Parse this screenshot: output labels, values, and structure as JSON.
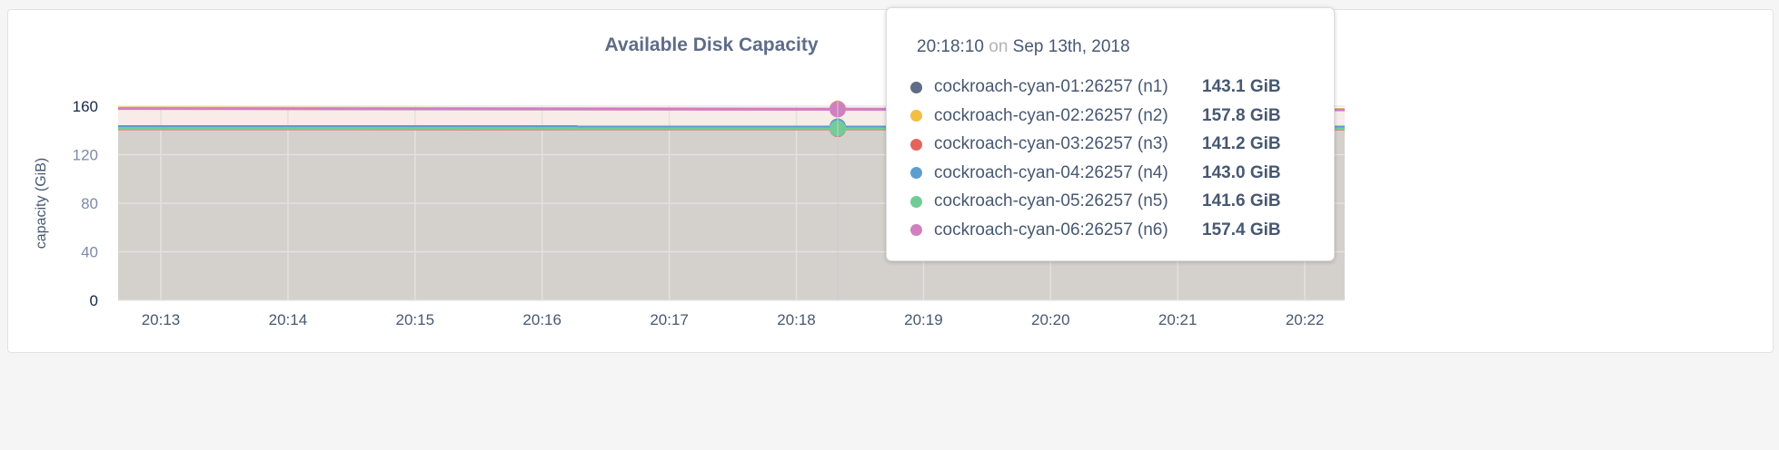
{
  "chart_data": {
    "type": "area",
    "title": "Available Disk Capacity",
    "ylabel": "capacity (GiB)",
    "xlabel": "",
    "ylim": [
      0,
      160
    ],
    "yticks": [
      "0",
      "40",
      "80",
      "120",
      "160"
    ],
    "xticks": [
      "20:13",
      "20:14",
      "20:15",
      "20:16",
      "20:17",
      "20:18",
      "20:19",
      "20:20",
      "20:21",
      "20:22"
    ],
    "grid": true,
    "series": [
      {
        "name": "cockroach-cyan-01:26257 (n1)",
        "color": "#5f6c87",
        "start": 143.2,
        "end": 143.0,
        "hover": "143.1 GiB"
      },
      {
        "name": "cockroach-cyan-02:26257 (n2)",
        "color": "#f2be45",
        "start": 158.5,
        "end": 157.3,
        "hover": "157.8 GiB"
      },
      {
        "name": "cockroach-cyan-03:26257 (n3)",
        "color": "#e4645c",
        "start": 141.3,
        "end": 141.1,
        "hover": "141.2 GiB"
      },
      {
        "name": "cockroach-cyan-04:26257 (n4)",
        "color": "#5e9dd0",
        "start": 143.1,
        "end": 142.9,
        "hover": "143.0 GiB"
      },
      {
        "name": "cockroach-cyan-05:26257 (n5)",
        "color": "#72cc97",
        "start": 141.7,
        "end": 141.5,
        "hover": "141.6 GiB"
      },
      {
        "name": "cockroach-cyan-06:26257 (n6)",
        "color": "#d17fbf",
        "start": 158.0,
        "end": 156.9,
        "hover": "157.4 GiB"
      }
    ]
  },
  "tooltip": {
    "time": "20:18:10",
    "on": "on",
    "date": "Sep 13th, 2018"
  }
}
